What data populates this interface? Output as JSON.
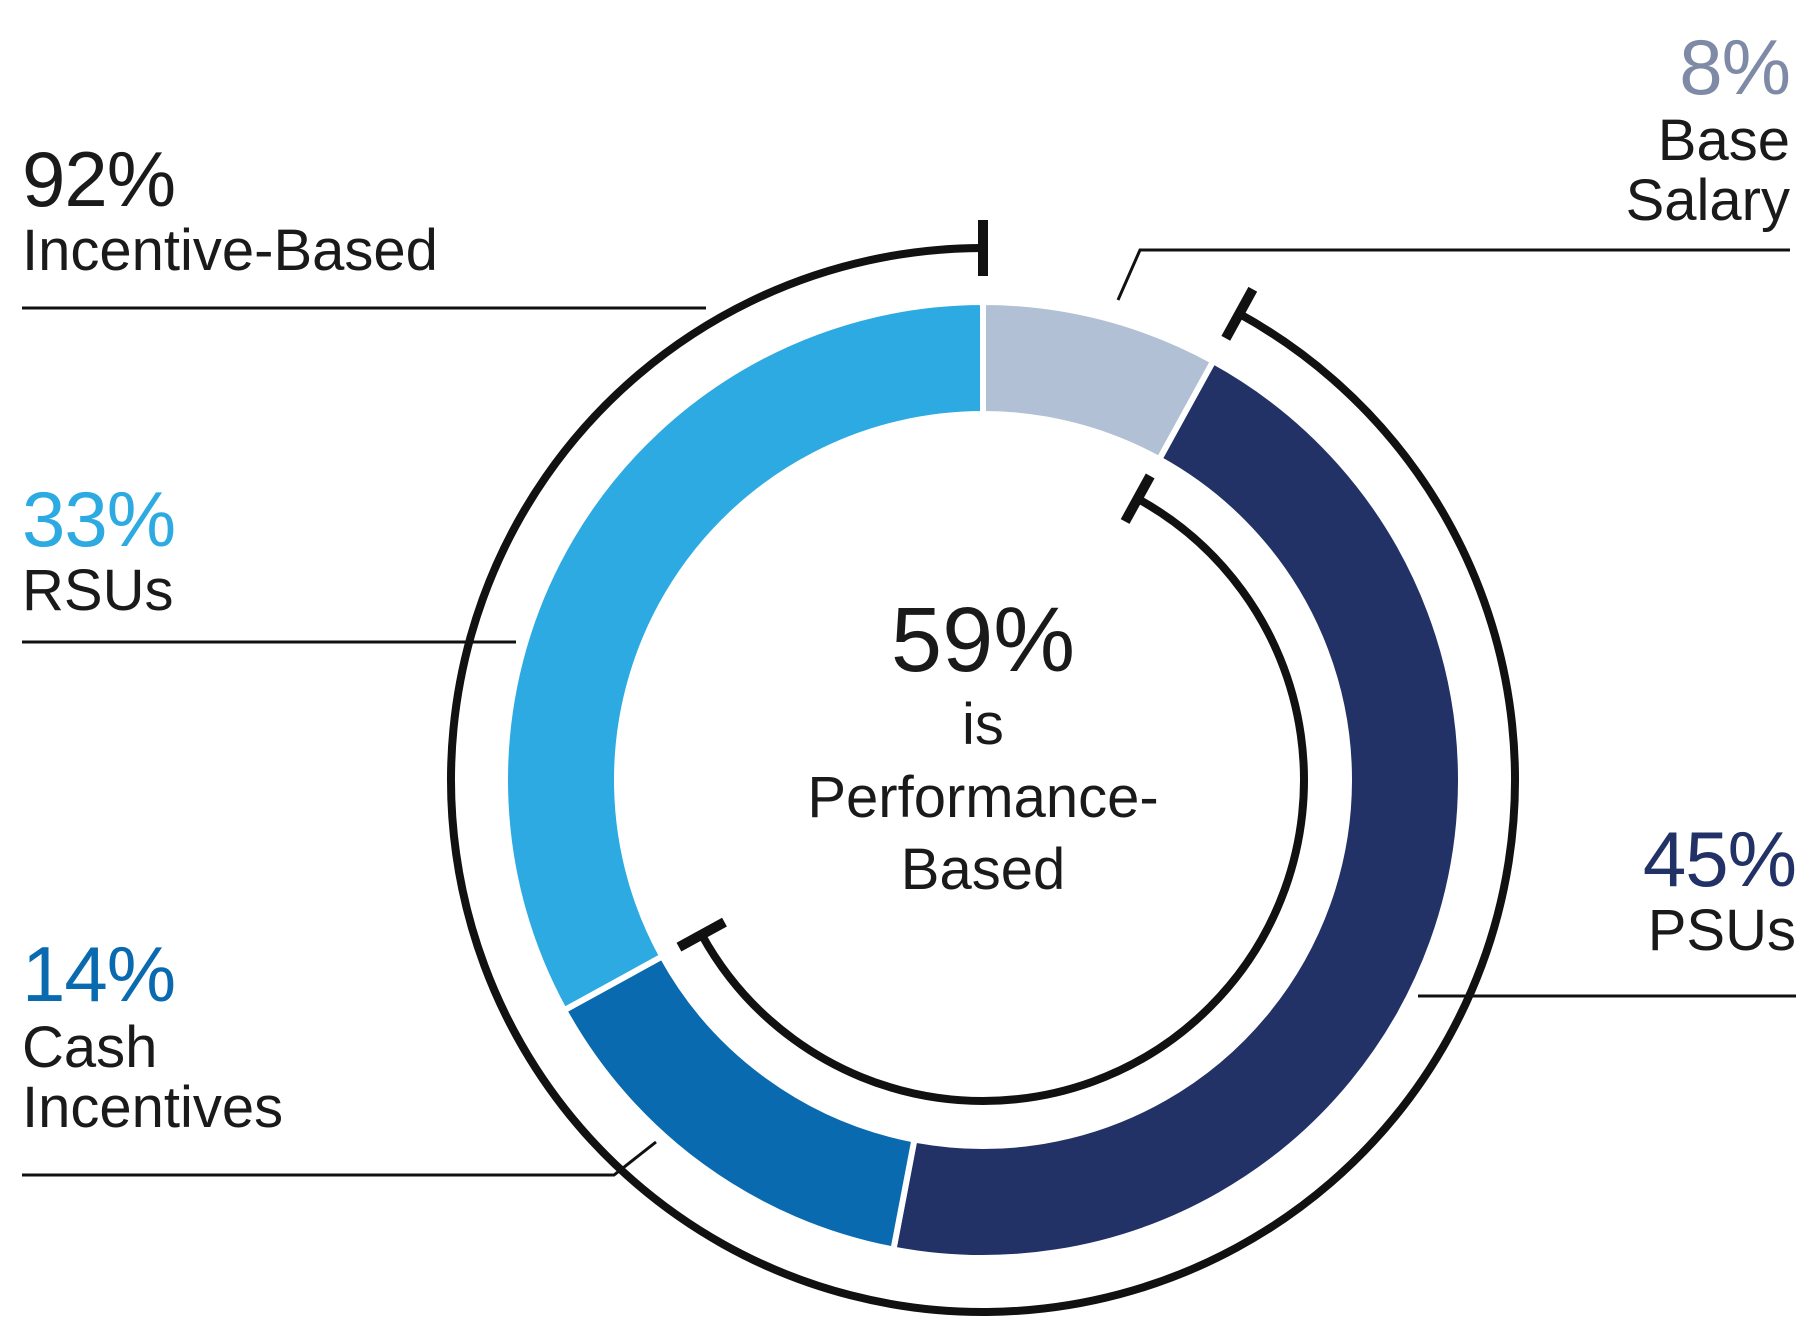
{
  "chart_data": {
    "type": "pie",
    "slices": [
      {
        "label": "Base Salary",
        "value": 8,
        "color": "#b1c0d4"
      },
      {
        "label": "PSUs",
        "value": 45,
        "color": "#233266"
      },
      {
        "label": "Cash Incentives",
        "value": 14,
        "color": "#0a6aaf"
      },
      {
        "label": "RSUs",
        "value": 33,
        "color": "#2caae1"
      }
    ],
    "groups": [
      {
        "label": "Incentive-Based",
        "value": 92
      },
      {
        "label": "Performance-Based",
        "value": 59
      }
    ]
  },
  "labels": {
    "incentive": {
      "pct": "92%",
      "caption": "Incentive-Based"
    },
    "base": {
      "pct": "8%",
      "caption_1": "Base",
      "caption_2": "Salary"
    },
    "rsus": {
      "pct": "33%",
      "caption": "RSUs"
    },
    "psus": {
      "pct": "45%",
      "caption": "PSUs"
    },
    "cash": {
      "pct": "14%",
      "caption_1": "Cash",
      "caption_2": "Incentives"
    },
    "center": {
      "pct": "59%",
      "line_1": "is",
      "line_2": "Performance-",
      "line_3": "Based"
    }
  },
  "colors": {
    "base": "#b1c0d4",
    "psus": "#233266",
    "cash": "#0a6aaf",
    "rsus": "#2caae1",
    "base_text": "#7e8aa6",
    "psus_text": "#233266",
    "cash_text": "#0a6aaf",
    "rsus_text": "#2caae1",
    "ink": "#1a1a1a"
  }
}
